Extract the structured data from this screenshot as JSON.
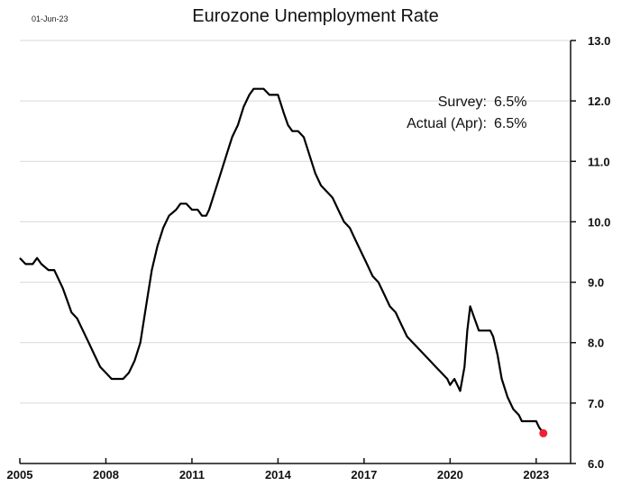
{
  "chart_data": {
    "type": "line",
    "title": "Eurozone Unemployment Rate",
    "date_label": "01-Jun-23",
    "xlabel": "",
    "ylabel": "",
    "xlim": [
      2005,
      2024.2
    ],
    "ylim": [
      6.0,
      13.0
    ],
    "x_ticks": [
      "2005",
      "2008",
      "2011",
      "2014",
      "2017",
      "2020",
      "2023"
    ],
    "y_ticks": [
      "13.0",
      "12.0",
      "11.0",
      "10.0",
      "9.0",
      "8.0",
      "7.0",
      "6.0"
    ],
    "y_axis_position": "right",
    "grid": "horizontal",
    "annotations": [
      {
        "label": "Survey:",
        "value": "6.5%"
      },
      {
        "label": "Actual (Apr):",
        "value": "6.5%"
      }
    ],
    "highlight_point": {
      "x": 2023.25,
      "y": 6.5,
      "color": "#ee2233"
    },
    "series": [
      {
        "color": "#000000",
        "points": [
          [
            2005.0,
            9.4
          ],
          [
            2005.2,
            9.3
          ],
          [
            2005.45,
            9.3
          ],
          [
            2005.6,
            9.4
          ],
          [
            2005.75,
            9.3
          ],
          [
            2006.0,
            9.2
          ],
          [
            2006.2,
            9.2
          ],
          [
            2006.5,
            8.9
          ],
          [
            2006.8,
            8.5
          ],
          [
            2007.0,
            8.4
          ],
          [
            2007.2,
            8.2
          ],
          [
            2007.4,
            8.0
          ],
          [
            2007.6,
            7.8
          ],
          [
            2007.8,
            7.6
          ],
          [
            2008.0,
            7.5
          ],
          [
            2008.2,
            7.4
          ],
          [
            2008.6,
            7.4
          ],
          [
            2008.8,
            7.5
          ],
          [
            2009.0,
            7.7
          ],
          [
            2009.2,
            8.0
          ],
          [
            2009.4,
            8.6
          ],
          [
            2009.6,
            9.2
          ],
          [
            2009.8,
            9.6
          ],
          [
            2010.0,
            9.9
          ],
          [
            2010.2,
            10.1
          ],
          [
            2010.45,
            10.2
          ],
          [
            2010.6,
            10.3
          ],
          [
            2010.8,
            10.3
          ],
          [
            2011.0,
            10.2
          ],
          [
            2011.2,
            10.2
          ],
          [
            2011.35,
            10.1
          ],
          [
            2011.5,
            10.1
          ],
          [
            2011.6,
            10.2
          ],
          [
            2011.8,
            10.5
          ],
          [
            2012.0,
            10.8
          ],
          [
            2012.2,
            11.1
          ],
          [
            2012.4,
            11.4
          ],
          [
            2012.6,
            11.6
          ],
          [
            2012.8,
            11.9
          ],
          [
            2013.0,
            12.1
          ],
          [
            2013.15,
            12.2
          ],
          [
            2013.5,
            12.2
          ],
          [
            2013.7,
            12.1
          ],
          [
            2014.0,
            12.1
          ],
          [
            2014.2,
            11.8
          ],
          [
            2014.35,
            11.6
          ],
          [
            2014.5,
            11.5
          ],
          [
            2014.7,
            11.5
          ],
          [
            2014.9,
            11.4
          ],
          [
            2015.1,
            11.1
          ],
          [
            2015.3,
            10.8
          ],
          [
            2015.5,
            10.6
          ],
          [
            2015.7,
            10.5
          ],
          [
            2015.9,
            10.4
          ],
          [
            2016.1,
            10.2
          ],
          [
            2016.3,
            10.0
          ],
          [
            2016.5,
            9.9
          ],
          [
            2016.7,
            9.7
          ],
          [
            2016.9,
            9.5
          ],
          [
            2017.1,
            9.3
          ],
          [
            2017.3,
            9.1
          ],
          [
            2017.5,
            9.0
          ],
          [
            2017.7,
            8.8
          ],
          [
            2017.9,
            8.6
          ],
          [
            2018.1,
            8.5
          ],
          [
            2018.3,
            8.3
          ],
          [
            2018.5,
            8.1
          ],
          [
            2018.7,
            8.0
          ],
          [
            2018.9,
            7.9
          ],
          [
            2019.1,
            7.8
          ],
          [
            2019.3,
            7.7
          ],
          [
            2019.5,
            7.6
          ],
          [
            2019.7,
            7.5
          ],
          [
            2019.9,
            7.4
          ],
          [
            2020.0,
            7.3
          ],
          [
            2020.15,
            7.4
          ],
          [
            2020.25,
            7.3
          ],
          [
            2020.35,
            7.2
          ],
          [
            2020.5,
            7.6
          ],
          [
            2020.6,
            8.2
          ],
          [
            2020.7,
            8.6
          ],
          [
            2020.85,
            8.4
          ],
          [
            2021.0,
            8.2
          ],
          [
            2021.4,
            8.2
          ],
          [
            2021.5,
            8.1
          ],
          [
            2021.65,
            7.8
          ],
          [
            2021.8,
            7.4
          ],
          [
            2022.0,
            7.1
          ],
          [
            2022.2,
            6.9
          ],
          [
            2022.4,
            6.8
          ],
          [
            2022.5,
            6.7
          ],
          [
            2022.7,
            6.7
          ],
          [
            2023.0,
            6.7
          ],
          [
            2023.1,
            6.6
          ],
          [
            2023.25,
            6.5
          ]
        ]
      }
    ]
  }
}
